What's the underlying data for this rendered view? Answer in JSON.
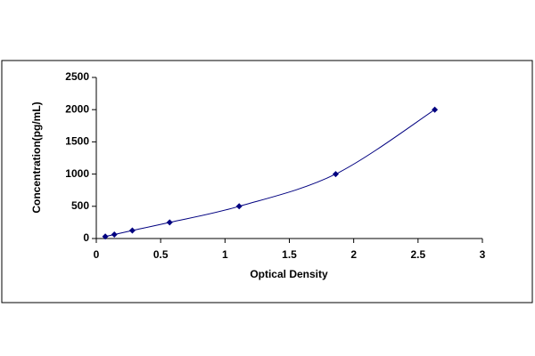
{
  "chart_data": {
    "type": "scatter-line",
    "x_label": "Optical Density",
    "y_label": "Concentration(pg/mL)",
    "x": [
      0.07,
      0.14,
      0.28,
      0.57,
      1.11,
      1.86,
      2.63
    ],
    "series": [
      {
        "color": "#000080",
        "values": [
          31,
          62,
          125,
          250,
          500,
          1000,
          2000
        ]
      }
    ],
    "xlim": [
      0,
      3
    ],
    "xticks": [
      0,
      0.5,
      1,
      1.5,
      2,
      2.5,
      3
    ],
    "ylim": [
      0,
      2500
    ],
    "yticks": [
      0,
      500,
      1000,
      1500,
      2000,
      2500
    ],
    "grid": false
  }
}
